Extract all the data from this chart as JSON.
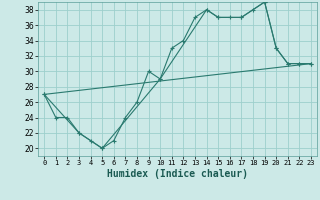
{
  "xlabel": "Humidex (Indice chaleur)",
  "xlim": [
    -0.5,
    23.5
  ],
  "ylim": [
    19,
    39
  ],
  "yticks": [
    20,
    22,
    24,
    26,
    28,
    30,
    32,
    34,
    36,
    38
  ],
  "xticks": [
    0,
    1,
    2,
    3,
    4,
    5,
    6,
    7,
    8,
    9,
    10,
    11,
    12,
    13,
    14,
    15,
    16,
    17,
    18,
    19,
    20,
    21,
    22,
    23
  ],
  "bg_color": "#cce9e7",
  "grid_color": "#9dcfcc",
  "line_color": "#2a7a6f",
  "line1_x": [
    0,
    1,
    2,
    3,
    4,
    5,
    6,
    7,
    8,
    9,
    10,
    11,
    12,
    13,
    14,
    15,
    16,
    17,
    18,
    19,
    20,
    21,
    22,
    23
  ],
  "line1_y": [
    27,
    24,
    24,
    22,
    21,
    20,
    21,
    24,
    26,
    30,
    29,
    33,
    34,
    37,
    38,
    37,
    37,
    37,
    38,
    39,
    33,
    31,
    31,
    31
  ],
  "line2_x": [
    0,
    3,
    5,
    10,
    14,
    15,
    17,
    19,
    20,
    21,
    22,
    23
  ],
  "line2_y": [
    27,
    22,
    20,
    29,
    38,
    37,
    37,
    39,
    33,
    31,
    31,
    31
  ],
  "line3_x": [
    0,
    23
  ],
  "line3_y": [
    27,
    31
  ],
  "xlabel_fontsize": 7,
  "tick_fontsize": 5,
  "ytick_fontsize": 5.5
}
